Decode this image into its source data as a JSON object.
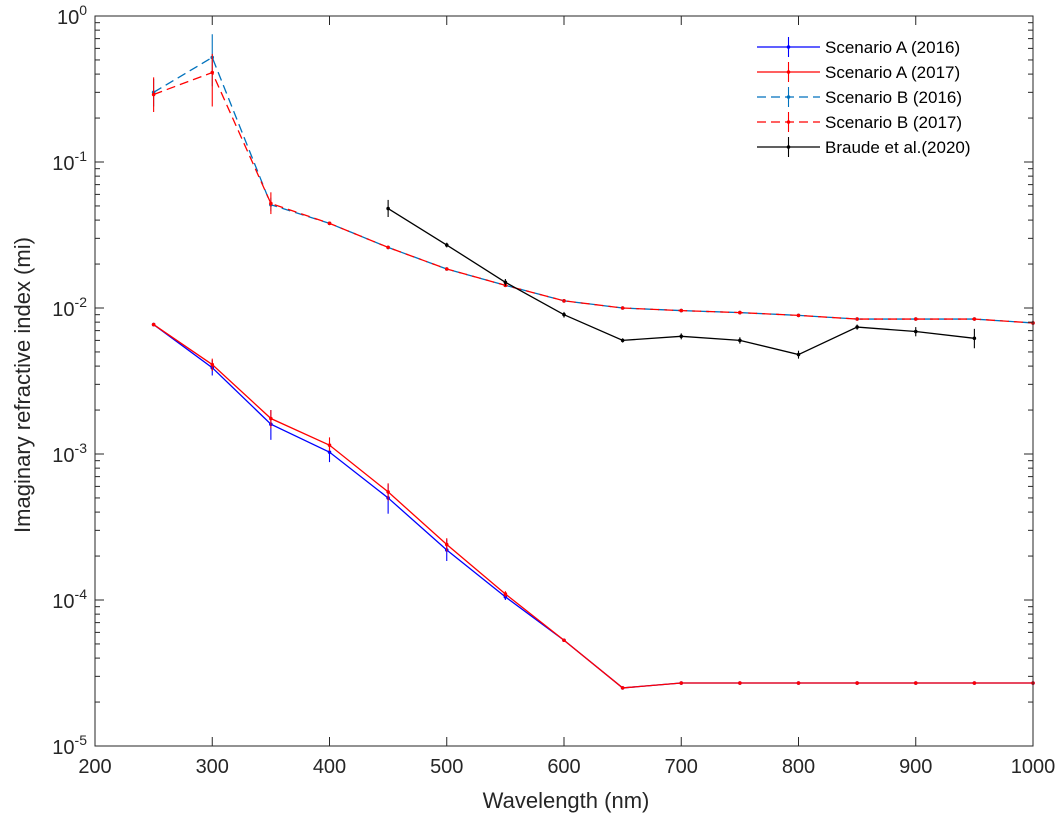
{
  "chart_data": {
    "type": "line",
    "xlabel": "Wavelength (nm)",
    "ylabel": "Imaginary refractive index (mi)",
    "xlim": [
      200,
      1000
    ],
    "ylim": [
      1e-05,
      1
    ],
    "yscale": "log",
    "grid": false,
    "legend_position": "top-right",
    "x_ticks": [
      200,
      300,
      400,
      500,
      600,
      700,
      800,
      900,
      1000
    ],
    "x_tick_labels": [
      "200",
      "300",
      "400",
      "500",
      "600",
      "700",
      "800",
      "900",
      "1000"
    ],
    "y_ticks": [
      1e-05,
      0.0001,
      0.001,
      0.01,
      0.1,
      1
    ],
    "y_tick_labels": [
      {
        "base": "10",
        "exp": "-5"
      },
      {
        "base": "10",
        "exp": "-4"
      },
      {
        "base": "10",
        "exp": "-3"
      },
      {
        "base": "10",
        "exp": "-2"
      },
      {
        "base": "10",
        "exp": "-1"
      },
      {
        "base": "10",
        "exp": "0"
      }
    ],
    "series": [
      {
        "name": "Scenario A (2016)",
        "color": "#0000ff",
        "dash": "solid",
        "x": [
          250,
          300,
          350,
          400,
          450,
          500,
          550,
          600,
          650,
          700,
          750,
          800,
          850,
          900,
          950,
          1000
        ],
        "y": [
          0.0077,
          0.0039,
          0.0016,
          0.00103,
          0.0005,
          0.00022,
          0.000105,
          5.3e-05,
          2.5e-05,
          2.7e-05,
          2.7e-05,
          2.7e-05,
          2.7e-05,
          2.7e-05,
          2.7e-05,
          2.7e-05
        ],
        "yerr_low": [
          0.0075,
          0.00345,
          0.00125,
          0.00088,
          0.00039,
          0.000185,
          0.0001,
          5.3e-05,
          2.5e-05,
          2.7e-05,
          2.7e-05,
          2.7e-05,
          2.7e-05,
          2.7e-05,
          2.7e-05,
          2.7e-05
        ],
        "yerr_high": [
          0.0079,
          0.0044,
          0.002,
          0.0012,
          0.00062,
          0.00026,
          0.00011,
          5.3e-05,
          2.5e-05,
          2.7e-05,
          2.7e-05,
          2.7e-05,
          2.7e-05,
          2.7e-05,
          2.7e-05,
          2.7e-05
        ]
      },
      {
        "name": "Scenario A (2017)",
        "color": "#ff0000",
        "dash": "solid",
        "x": [
          250,
          300,
          350,
          400,
          450,
          500,
          550,
          600,
          650,
          700,
          750,
          800,
          850,
          900,
          950,
          1000
        ],
        "y": [
          0.0077,
          0.0041,
          0.00175,
          0.00115,
          0.00055,
          0.00024,
          0.00011,
          5.3e-05,
          2.5e-05,
          2.7e-05,
          2.7e-05,
          2.7e-05,
          2.7e-05,
          2.7e-05,
          2.7e-05,
          2.7e-05
        ],
        "yerr_low": [
          0.0076,
          0.0037,
          0.0015,
          0.00105,
          0.00048,
          0.000215,
          0.000105,
          5.3e-05,
          2.5e-05,
          2.7e-05,
          2.7e-05,
          2.7e-05,
          2.7e-05,
          2.7e-05,
          2.7e-05,
          2.7e-05
        ],
        "yerr_high": [
          0.0078,
          0.0045,
          0.002,
          0.0013,
          0.00063,
          0.000265,
          0.000115,
          5.3e-05,
          2.5e-05,
          2.7e-05,
          2.7e-05,
          2.7e-05,
          2.7e-05,
          2.7e-05,
          2.7e-05,
          2.7e-05
        ]
      },
      {
        "name": "Scenario B (2016)",
        "color": "#0072bd",
        "dash": "dashed",
        "x": [
          250,
          300,
          350,
          400,
          450,
          500,
          550,
          600,
          650,
          700,
          750,
          800,
          850,
          900,
          950,
          1000
        ],
        "y": [
          0.3,
          0.52,
          0.051,
          0.038,
          0.026,
          0.0185,
          0.0143,
          0.0112,
          0.01,
          0.0096,
          0.0093,
          0.0089,
          0.0084,
          0.0084,
          0.0084,
          0.0079
        ],
        "yerr_low": [
          0.24,
          0.33,
          0.046,
          0.037,
          0.026,
          0.0185,
          0.0143,
          0.0112,
          0.01,
          0.0096,
          0.0093,
          0.0089,
          0.0084,
          0.0084,
          0.0084,
          0.0079
        ],
        "yerr_high": [
          0.37,
          0.75,
          0.057,
          0.039,
          0.026,
          0.0185,
          0.0143,
          0.0112,
          0.01,
          0.0096,
          0.0093,
          0.0089,
          0.0084,
          0.0084,
          0.0084,
          0.0079
        ]
      },
      {
        "name": "Scenario B (2017)",
        "color": "#ff0000",
        "dash": "dashed",
        "x": [
          250,
          300,
          350,
          400,
          450,
          500,
          550,
          600,
          650,
          700,
          750,
          800,
          850,
          900,
          950,
          1000
        ],
        "y": [
          0.29,
          0.41,
          0.052,
          0.038,
          0.026,
          0.0185,
          0.0143,
          0.0112,
          0.01,
          0.0096,
          0.0093,
          0.0089,
          0.0084,
          0.0084,
          0.0084,
          0.0079
        ],
        "yerr_low": [
          0.22,
          0.24,
          0.044,
          0.037,
          0.026,
          0.0185,
          0.0143,
          0.0112,
          0.01,
          0.0096,
          0.0093,
          0.0089,
          0.0084,
          0.0084,
          0.0084,
          0.0079
        ],
        "yerr_high": [
          0.38,
          0.55,
          0.062,
          0.039,
          0.026,
          0.0185,
          0.0143,
          0.0112,
          0.01,
          0.0096,
          0.0093,
          0.0089,
          0.0084,
          0.0084,
          0.0084,
          0.0079
        ]
      },
      {
        "name": "Braude et al.(2020)",
        "color": "#000000",
        "dash": "solid",
        "x": [
          450,
          500,
          550,
          600,
          650,
          700,
          750,
          800,
          850,
          900,
          950
        ],
        "y": [
          0.048,
          0.027,
          0.015,
          0.009,
          0.006,
          0.0064,
          0.006,
          0.0048,
          0.0074,
          0.0069,
          0.0062
        ],
        "yerr_low": [
          0.042,
          0.026,
          0.0142,
          0.0086,
          0.0058,
          0.0061,
          0.0057,
          0.0045,
          0.0071,
          0.0064,
          0.0053
        ],
        "yerr_high": [
          0.055,
          0.028,
          0.0158,
          0.0094,
          0.0062,
          0.0067,
          0.0063,
          0.0051,
          0.0077,
          0.0074,
          0.0072
        ]
      }
    ]
  }
}
